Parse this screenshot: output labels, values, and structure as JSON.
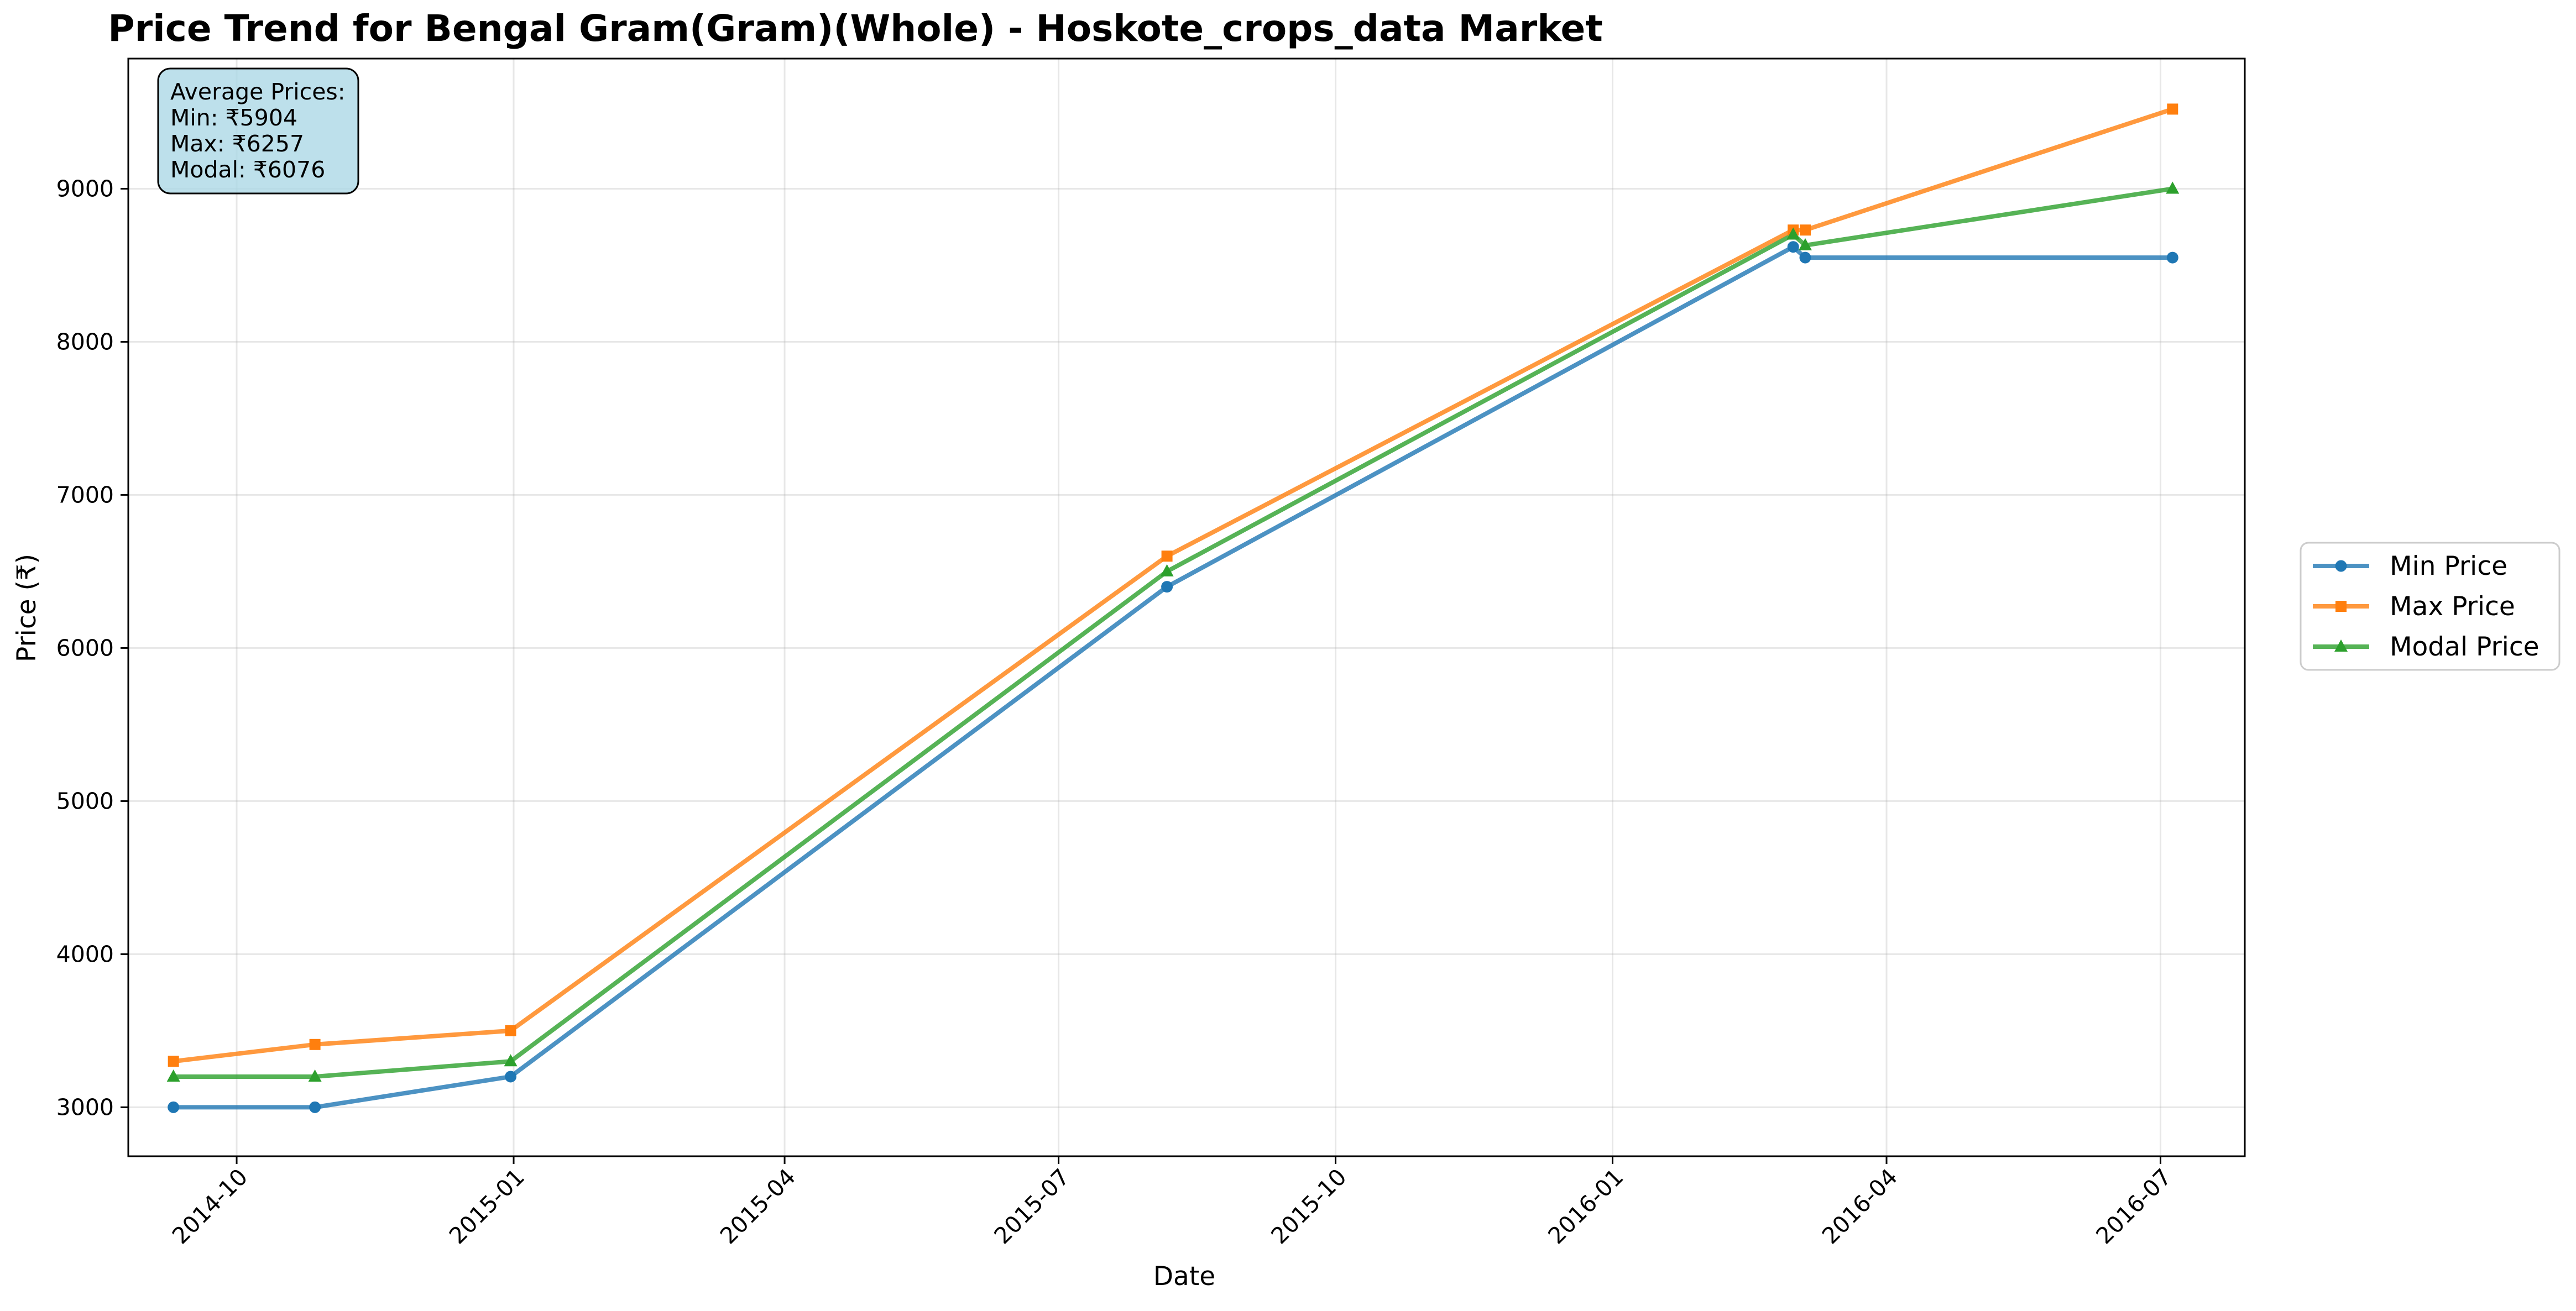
{
  "chart_data": {
    "type": "line",
    "title": "Price Trend for Bengal Gram(Gram)(Whole) - Hoskote_crops_data Market",
    "xlabel": "Date",
    "ylabel": "Price (₹)",
    "x_ticks": [
      "2014-10",
      "2015-01",
      "2015-04",
      "2015-07",
      "2015-10",
      "2016-01",
      "2016-04",
      "2016-07"
    ],
    "y_ticks": [
      3000,
      4000,
      5000,
      6000,
      7000,
      8000,
      9000
    ],
    "xlim": [
      "2014-08-26",
      "2016-07-29"
    ],
    "ylim": [
      2680,
      9850
    ],
    "grid": true,
    "legend_position": "right",
    "x": [
      "2014-09-10",
      "2014-10-27",
      "2014-12-31",
      "2015-08-06",
      "2016-03-01",
      "2016-03-05",
      "2016-07-05"
    ],
    "series": [
      {
        "name": "Min Price",
        "color": "#1f77b4",
        "marker": "circle",
        "values": [
          3000,
          3000,
          3200,
          6400,
          8620,
          8550,
          8550
        ]
      },
      {
        "name": "Max Price",
        "color": "#ff7f0e",
        "marker": "square",
        "values": [
          3300,
          3410,
          3500,
          6600,
          8730,
          8730,
          9520
        ]
      },
      {
        "name": "Modal Price",
        "color": "#2ca02c",
        "marker": "triangle",
        "values": [
          3200,
          3200,
          3300,
          6500,
          8700,
          8630,
          9000
        ]
      }
    ],
    "annotation": {
      "heading": "Average Prices:",
      "lines": [
        "Min: ₹5904",
        "Max: ₹6257",
        "Modal: ₹6076"
      ],
      "position": "top-left",
      "background": "#add8e6"
    }
  }
}
